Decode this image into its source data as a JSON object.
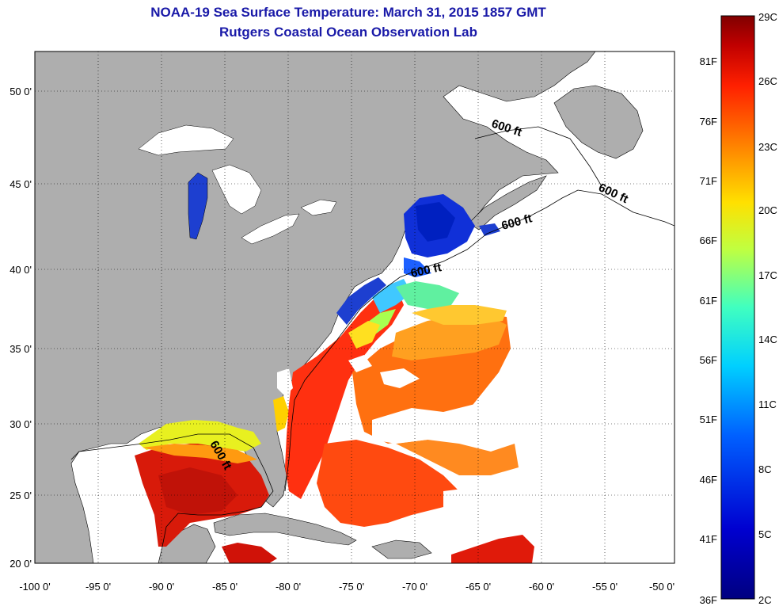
{
  "header": {
    "title": "NOAA-19 Sea Surface Temperature:  March 31, 2015 1857 GMT",
    "subtitle": "Rutgers Coastal Ocean Observation Lab"
  },
  "map": {
    "lat_labels": [
      "50 0'",
      "45 0'",
      "40 0'",
      "35 0'",
      "30 0'",
      "25 0'",
      "20 0'"
    ],
    "lon_labels": [
      "-100 0'",
      "-95 0'",
      "-90 0'",
      "-85 0'",
      "-80 0'",
      "-75 0'",
      "-70 0'",
      "-65 0'",
      "-60 0'",
      "-55 0'",
      "-50 0'"
    ],
    "isobath_label": "600 ft",
    "land_color": "#aeaeae",
    "ocean_color": "#ffffff"
  },
  "colorbar": {
    "fahrenheit_labels": [
      "81F",
      "76F",
      "71F",
      "66F",
      "61F",
      "56F",
      "51F",
      "46F",
      "41F",
      "36F"
    ],
    "celsius_labels": [
      "29C",
      "26C",
      "23C",
      "20C",
      "17C",
      "14C",
      "11C",
      "8C",
      "5C",
      "2C"
    ],
    "colors": [
      "#800000",
      "#c80000",
      "#ff2000",
      "#ff8000",
      "#ffd000",
      "#e0ff20",
      "#60ff90",
      "#00f0ff",
      "#0090ff",
      "#0030ff",
      "#0000c0",
      "#000080"
    ]
  }
}
